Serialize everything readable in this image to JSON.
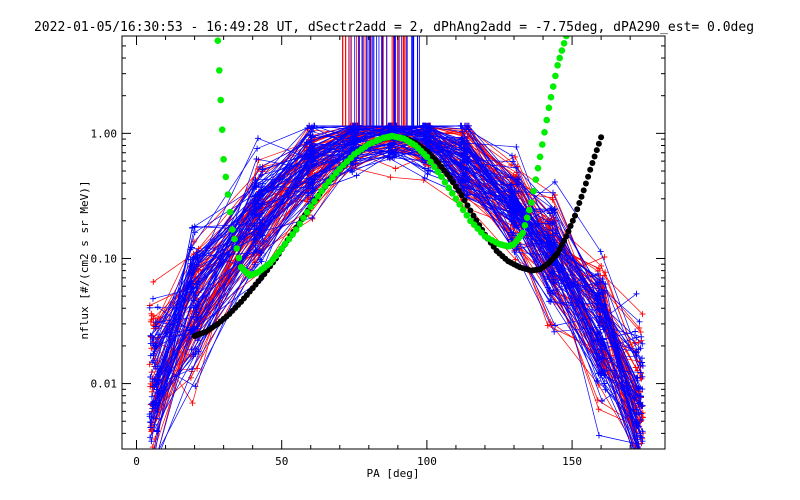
{
  "chart_data": {
    "type": "line",
    "title": "2022-01-05/16:30:53 - 16:49:28 UT, dSectr2add = 2, dPhAng2add = -7.75deg, dPA290_est=   0.0deg",
    "xlabel": "PA [deg]",
    "ylabel": "nflux [#/(cm2 s sr MeV)]",
    "xlim": [
      -5,
      182
    ],
    "ylim": [
      0.003,
      6.0
    ],
    "yscale": "log",
    "x_ticks": [
      0,
      50,
      100,
      150
    ],
    "x_tick_labels": [
      "0",
      "50",
      "100",
      "150"
    ],
    "y_ticks": [
      0.01,
      0.1,
      1.0
    ],
    "y_tick_labels": [
      "0.01",
      "0.10",
      "1.00"
    ],
    "grid": false,
    "series_colors": {
      "red_traces": "#ff0000",
      "blue_traces": "#0000ff",
      "green_fit": "#00ee00",
      "black_fit": "#000000"
    },
    "trace_pa_bins": [
      6,
      20,
      42,
      60,
      75,
      88,
      100,
      113,
      130,
      143,
      160,
      173
    ],
    "green_curve": {
      "x": [
        28,
        30,
        33,
        36,
        39,
        42,
        46,
        50,
        55,
        60,
        65,
        70,
        75,
        80,
        85,
        88,
        92,
        96,
        100,
        105,
        110,
        115,
        120,
        125,
        128,
        130,
        133,
        136,
        139,
        142,
        145,
        148
      ],
      "y": [
        5.5,
        0.62,
        0.17,
        0.085,
        0.073,
        0.078,
        0.092,
        0.12,
        0.17,
        0.26,
        0.38,
        0.52,
        0.68,
        0.82,
        0.92,
        0.95,
        0.91,
        0.8,
        0.65,
        0.45,
        0.3,
        0.2,
        0.15,
        0.13,
        0.125,
        0.13,
        0.16,
        0.28,
        0.65,
        1.6,
        3.5,
        6.0
      ]
    },
    "black_curve": {
      "x": [
        20,
        24,
        28,
        32,
        36,
        40,
        44,
        48,
        52,
        56,
        60,
        64,
        68,
        72,
        76,
        80,
        84,
        88,
        92,
        96,
        100,
        104,
        108,
        112,
        116,
        120,
        124,
        128,
        132,
        136,
        139,
        142,
        145,
        148,
        151,
        154,
        157,
        160
      ],
      "y": [
        0.024,
        0.026,
        0.03,
        0.036,
        0.045,
        0.058,
        0.075,
        0.1,
        0.14,
        0.19,
        0.26,
        0.35,
        0.46,
        0.58,
        0.71,
        0.82,
        0.9,
        0.94,
        0.92,
        0.84,
        0.72,
        0.58,
        0.44,
        0.32,
        0.22,
        0.155,
        0.115,
        0.095,
        0.085,
        0.08,
        0.082,
        0.092,
        0.11,
        0.15,
        0.22,
        0.35,
        0.58,
        0.93
      ]
    },
    "red_reference_x_range": [
      70,
      93
    ],
    "blue_reference_x_range": [
      73,
      99
    ],
    "red_reference_line_count": 26,
    "blue_reference_line_count": 34
  }
}
